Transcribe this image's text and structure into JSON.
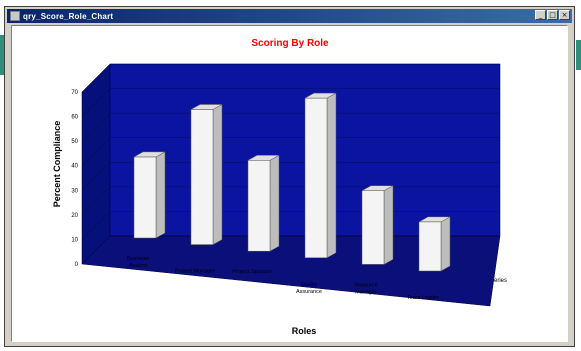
{
  "window": {
    "title": "qry_Score_Role_Chart",
    "controls": {
      "minimize": "_",
      "maximize": "□",
      "close": "×"
    }
  },
  "chart_data": {
    "type": "bar",
    "title": "Scoring By Role",
    "xlabel": "Roles",
    "ylabel": "Percent Compliance",
    "series_axis_label": "Series",
    "categories": [
      "Business Analyst",
      "Project Manager",
      "Project Sponsor",
      "Quality Assurance",
      "Resource Manager",
      "Team Leader"
    ],
    "series": [
      {
        "values": [
          33,
          55,
          37,
          65,
          30,
          20
        ]
      }
    ],
    "ylim": [
      0,
      70
    ],
    "yticks": [
      0,
      10,
      20,
      30,
      40,
      50,
      60,
      70
    ],
    "grid": true,
    "style": "3d",
    "colors": {
      "wall": "#0a14a0",
      "floor": "#0a0f7a",
      "bar": "#f4f4f4",
      "title": "#ff0000"
    }
  }
}
